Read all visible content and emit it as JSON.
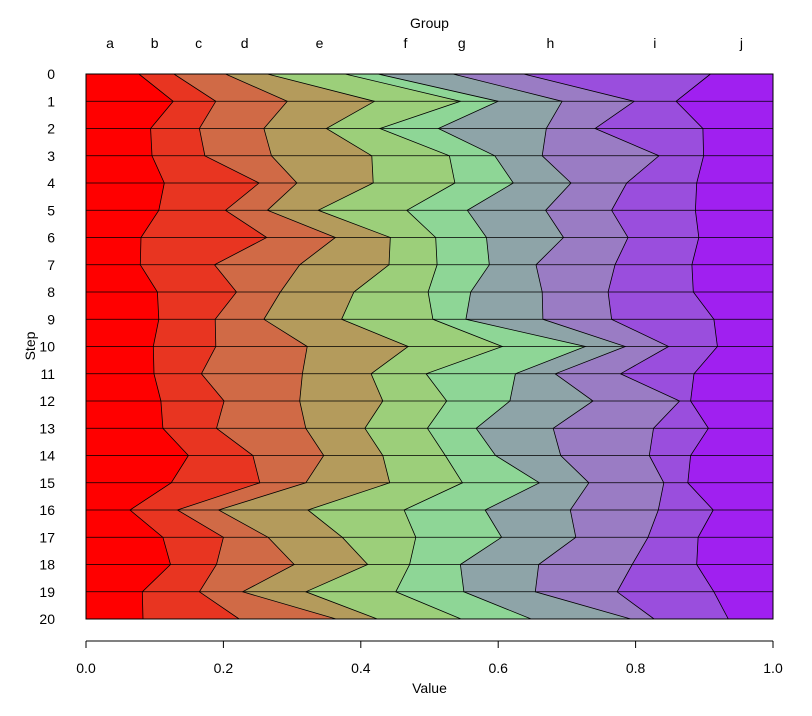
{
  "chart_data": {
    "type": "area",
    "orientation": "horizontal-stacked",
    "xlabel": "Value",
    "ylabel": "Step",
    "top_axis_title": "Group",
    "xlim": [
      0,
      1
    ],
    "x_ticks": [
      "0.0",
      "0.2",
      "0.4",
      "0.6",
      "0.8",
      "1.0"
    ],
    "steps": [
      "0",
      "1",
      "2",
      "3",
      "4",
      "5",
      "6",
      "7",
      "8",
      "9",
      "10",
      "11",
      "12",
      "13",
      "14",
      "15",
      "16",
      "17",
      "18",
      "19",
      "20"
    ],
    "grid": false,
    "colors": [
      "#ff0000",
      "#e83521",
      "#d06a46",
      "#b49b5c",
      "#9ccf7a",
      "#8ed696",
      "#8ea4a8",
      "#9a7cc4",
      "#9a4edd",
      "#a020f0"
    ],
    "series": [
      {
        "name": "a",
        "label_pos": 0.035,
        "cum": [
          0.077,
          0.127,
          0.094,
          0.096,
          0.114,
          0.106,
          0.08,
          0.079,
          0.104,
          0.106,
          0.098,
          0.099,
          0.109,
          0.112,
          0.149,
          0.124,
          0.064,
          0.112,
          0.123,
          0.082,
          0.083
        ]
      },
      {
        "name": "b",
        "label_pos": 0.1,
        "cum": [
          0.128,
          0.189,
          0.165,
          0.173,
          0.252,
          0.203,
          0.263,
          0.187,
          0.219,
          0.188,
          0.189,
          0.168,
          0.201,
          0.19,
          0.243,
          0.253,
          0.133,
          0.2,
          0.19,
          0.165,
          0.223
        ]
      },
      {
        "name": "c",
        "label_pos": 0.164,
        "cum": [
          0.203,
          0.293,
          0.259,
          0.27,
          0.307,
          0.264,
          0.363,
          0.311,
          0.283,
          0.259,
          0.322,
          0.315,
          0.311,
          0.32,
          0.346,
          0.32,
          0.193,
          0.265,
          0.303,
          0.228,
          0.364
        ]
      },
      {
        "name": "d",
        "label_pos": 0.231,
        "cum": [
          0.264,
          0.42,
          0.35,
          0.416,
          0.418,
          0.338,
          0.443,
          0.441,
          0.39,
          0.372,
          0.469,
          0.415,
          0.432,
          0.406,
          0.432,
          0.442,
          0.323,
          0.373,
          0.41,
          0.32,
          0.424
        ]
      },
      {
        "name": "e",
        "label_pos": 0.34,
        "cum": [
          0.377,
          0.545,
          0.428,
          0.529,
          0.537,
          0.467,
          0.509,
          0.511,
          0.498,
          0.505,
          0.606,
          0.495,
          0.525,
          0.497,
          0.523,
          0.548,
          0.463,
          0.48,
          0.471,
          0.451,
          0.546
        ]
      },
      {
        "name": "f",
        "label_pos": 0.465,
        "cum": [
          0.425,
          0.6,
          0.513,
          0.595,
          0.622,
          0.555,
          0.583,
          0.587,
          0.56,
          0.553,
          0.727,
          0.625,
          0.617,
          0.568,
          0.596,
          0.66,
          0.581,
          0.605,
          0.545,
          0.55,
          0.648
        ]
      },
      {
        "name": "g",
        "label_pos": 0.547,
        "cum": [
          0.534,
          0.693,
          0.67,
          0.664,
          0.706,
          0.669,
          0.695,
          0.655,
          0.664,
          0.665,
          0.785,
          0.683,
          0.738,
          0.68,
          0.691,
          0.732,
          0.705,
          0.713,
          0.659,
          0.654,
          0.793
        ]
      },
      {
        "name": "h",
        "label_pos": 0.676,
        "cum": [
          0.637,
          0.798,
          0.741,
          0.834,
          0.787,
          0.765,
          0.789,
          0.77,
          0.76,
          0.765,
          0.848,
          0.778,
          0.864,
          0.826,
          0.82,
          0.841,
          0.833,
          0.818,
          0.795,
          0.773,
          0.827
        ]
      },
      {
        "name": "i",
        "label_pos": 0.828,
        "cum": [
          0.909,
          0.859,
          0.898,
          0.899,
          0.889,
          0.887,
          0.892,
          0.882,
          0.884,
          0.914,
          0.919,
          0.885,
          0.88,
          0.906,
          0.88,
          0.876,
          0.913,
          0.891,
          0.889,
          0.914,
          0.935
        ]
      },
      {
        "name": "j",
        "label_pos": 0.954,
        "cum": [
          1,
          1,
          1,
          1,
          1,
          1,
          1,
          1,
          1,
          1,
          1,
          1,
          1,
          1,
          1,
          1,
          1,
          1,
          1,
          1,
          1
        ]
      }
    ]
  }
}
